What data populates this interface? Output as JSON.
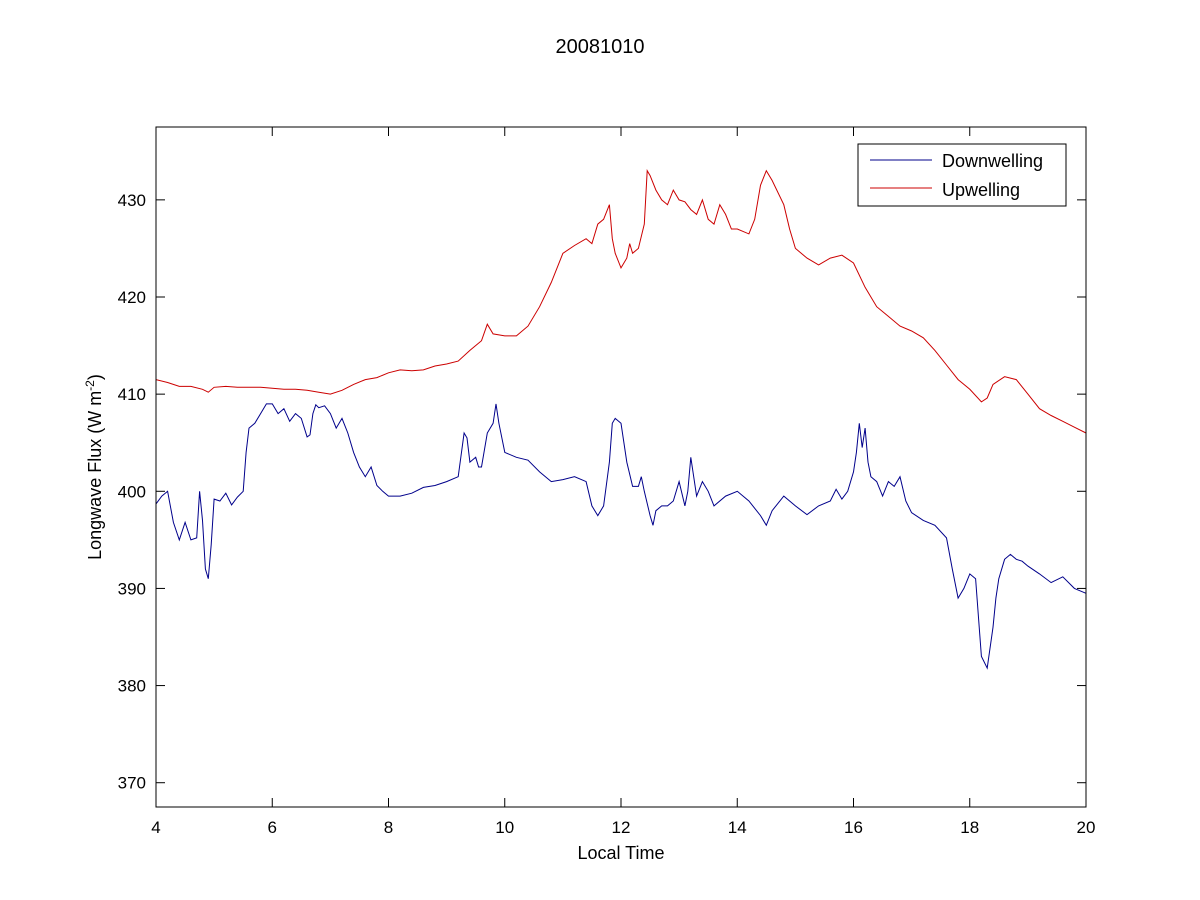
{
  "chart_data": {
    "type": "line",
    "title": "20081010",
    "xlabel": "Local Time",
    "ylabel": {
      "main": "Longwave Flux (W m",
      "superscript": "-2",
      "close": ")"
    },
    "xlim": [
      4,
      20
    ],
    "ylim": [
      367.5,
      437.5
    ],
    "xticks": [
      4,
      6,
      8,
      10,
      12,
      14,
      16,
      18,
      20
    ],
    "yticks": [
      370,
      380,
      390,
      400,
      410,
      420,
      430
    ],
    "grid": false,
    "legend": {
      "placement": "top-right"
    },
    "series": [
      {
        "name": "Downwelling",
        "color": "#00008b",
        "points": [
          [
            4.0,
            398.7
          ],
          [
            4.1,
            399.5
          ],
          [
            4.2,
            400.0
          ],
          [
            4.3,
            396.8
          ],
          [
            4.4,
            395.0
          ],
          [
            4.5,
            396.8
          ],
          [
            4.6,
            395.0
          ],
          [
            4.7,
            395.2
          ],
          [
            4.75,
            400.0
          ],
          [
            4.8,
            397.0
          ],
          [
            4.85,
            392.0
          ],
          [
            4.9,
            391.0
          ],
          [
            4.95,
            394.5
          ],
          [
            5.0,
            399.2
          ],
          [
            5.1,
            399.0
          ],
          [
            5.2,
            399.8
          ],
          [
            5.3,
            398.6
          ],
          [
            5.4,
            399.4
          ],
          [
            5.5,
            400.0
          ],
          [
            5.55,
            404.0
          ],
          [
            5.6,
            406.5
          ],
          [
            5.7,
            407.0
          ],
          [
            5.8,
            408.0
          ],
          [
            5.9,
            409.0
          ],
          [
            6.0,
            409.0
          ],
          [
            6.1,
            408.0
          ],
          [
            6.2,
            408.5
          ],
          [
            6.3,
            407.2
          ],
          [
            6.4,
            408.0
          ],
          [
            6.5,
            407.5
          ],
          [
            6.6,
            405.6
          ],
          [
            6.65,
            405.8
          ],
          [
            6.7,
            408.0
          ],
          [
            6.75,
            408.9
          ],
          [
            6.8,
            408.6
          ],
          [
            6.9,
            408.8
          ],
          [
            7.0,
            408.0
          ],
          [
            7.1,
            406.5
          ],
          [
            7.2,
            407.5
          ],
          [
            7.3,
            406.0
          ],
          [
            7.4,
            404.0
          ],
          [
            7.5,
            402.5
          ],
          [
            7.6,
            401.5
          ],
          [
            7.7,
            402.5
          ],
          [
            7.8,
            400.6
          ],
          [
            7.9,
            400.0
          ],
          [
            8.0,
            399.5
          ],
          [
            8.2,
            399.5
          ],
          [
            8.4,
            399.8
          ],
          [
            8.6,
            400.4
          ],
          [
            8.8,
            400.6
          ],
          [
            9.0,
            401.0
          ],
          [
            9.2,
            401.5
          ],
          [
            9.3,
            406.0
          ],
          [
            9.35,
            405.5
          ],
          [
            9.4,
            403.0
          ],
          [
            9.5,
            403.5
          ],
          [
            9.55,
            402.5
          ],
          [
            9.6,
            402.5
          ],
          [
            9.7,
            406.0
          ],
          [
            9.8,
            407.0
          ],
          [
            9.85,
            409.0
          ],
          [
            9.9,
            407.0
          ],
          [
            10.0,
            404.0
          ],
          [
            10.2,
            403.5
          ],
          [
            10.4,
            403.2
          ],
          [
            10.6,
            402.0
          ],
          [
            10.8,
            401.0
          ],
          [
            11.0,
            401.2
          ],
          [
            11.2,
            401.5
          ],
          [
            11.4,
            401.0
          ],
          [
            11.5,
            398.5
          ],
          [
            11.6,
            397.5
          ],
          [
            11.7,
            398.5
          ],
          [
            11.8,
            403.0
          ],
          [
            11.85,
            407.0
          ],
          [
            11.9,
            407.5
          ],
          [
            12.0,
            407.0
          ],
          [
            12.1,
            403.0
          ],
          [
            12.2,
            400.5
          ],
          [
            12.3,
            400.5
          ],
          [
            12.35,
            401.5
          ],
          [
            12.4,
            400.0
          ],
          [
            12.5,
            397.5
          ],
          [
            12.55,
            396.5
          ],
          [
            12.6,
            398.0
          ],
          [
            12.7,
            398.5
          ],
          [
            12.8,
            398.5
          ],
          [
            12.9,
            399.0
          ],
          [
            13.0,
            401.0
          ],
          [
            13.1,
            398.5
          ],
          [
            13.15,
            400.0
          ],
          [
            13.2,
            403.5
          ],
          [
            13.3,
            399.5
          ],
          [
            13.4,
            401.0
          ],
          [
            13.5,
            400.0
          ],
          [
            13.6,
            398.5
          ],
          [
            13.8,
            399.5
          ],
          [
            14.0,
            400.0
          ],
          [
            14.2,
            399.0
          ],
          [
            14.4,
            397.5
          ],
          [
            14.5,
            396.5
          ],
          [
            14.6,
            398.0
          ],
          [
            14.8,
            399.5
          ],
          [
            15.0,
            398.5
          ],
          [
            15.2,
            397.6
          ],
          [
            15.4,
            398.5
          ],
          [
            15.6,
            399.0
          ],
          [
            15.7,
            400.2
          ],
          [
            15.8,
            399.2
          ],
          [
            15.9,
            400.0
          ],
          [
            16.0,
            402.0
          ],
          [
            16.05,
            404.0
          ],
          [
            16.1,
            407.0
          ],
          [
            16.15,
            404.5
          ],
          [
            16.2,
            406.5
          ],
          [
            16.25,
            403.0
          ],
          [
            16.3,
            401.5
          ],
          [
            16.4,
            401.0
          ],
          [
            16.5,
            399.5
          ],
          [
            16.6,
            401.0
          ],
          [
            16.7,
            400.5
          ],
          [
            16.8,
            401.5
          ],
          [
            16.9,
            399.0
          ],
          [
            17.0,
            397.8
          ],
          [
            17.2,
            397.0
          ],
          [
            17.4,
            396.5
          ],
          [
            17.6,
            395.2
          ],
          [
            17.7,
            392.0
          ],
          [
            17.8,
            389.0
          ],
          [
            17.9,
            390.0
          ],
          [
            18.0,
            391.5
          ],
          [
            18.1,
            391.0
          ],
          [
            18.15,
            387.0
          ],
          [
            18.2,
            383.0
          ],
          [
            18.3,
            381.8
          ],
          [
            18.4,
            386.0
          ],
          [
            18.45,
            389.0
          ],
          [
            18.5,
            391.0
          ],
          [
            18.6,
            393.0
          ],
          [
            18.7,
            393.5
          ],
          [
            18.8,
            393.0
          ],
          [
            18.9,
            392.8
          ],
          [
            19.0,
            392.3
          ],
          [
            19.2,
            391.5
          ],
          [
            19.4,
            390.6
          ],
          [
            19.6,
            391.2
          ],
          [
            19.8,
            390.0
          ],
          [
            20.0,
            389.5
          ]
        ]
      },
      {
        "name": "Upwelling",
        "color": "#cc0000",
        "points": [
          [
            4.0,
            411.5
          ],
          [
            4.2,
            411.2
          ],
          [
            4.4,
            410.8
          ],
          [
            4.6,
            410.8
          ],
          [
            4.8,
            410.5
          ],
          [
            4.9,
            410.2
          ],
          [
            5.0,
            410.7
          ],
          [
            5.2,
            410.8
          ],
          [
            5.4,
            410.7
          ],
          [
            5.6,
            410.7
          ],
          [
            5.8,
            410.7
          ],
          [
            6.0,
            410.6
          ],
          [
            6.2,
            410.5
          ],
          [
            6.4,
            410.5
          ],
          [
            6.6,
            410.4
          ],
          [
            6.8,
            410.2
          ],
          [
            7.0,
            410.0
          ],
          [
            7.2,
            410.4
          ],
          [
            7.4,
            411.0
          ],
          [
            7.6,
            411.5
          ],
          [
            7.8,
            411.7
          ],
          [
            8.0,
            412.2
          ],
          [
            8.2,
            412.5
          ],
          [
            8.4,
            412.4
          ],
          [
            8.6,
            412.5
          ],
          [
            8.8,
            412.9
          ],
          [
            9.0,
            413.1
          ],
          [
            9.2,
            413.4
          ],
          [
            9.4,
            414.5
          ],
          [
            9.6,
            415.5
          ],
          [
            9.7,
            417.2
          ],
          [
            9.8,
            416.2
          ],
          [
            10.0,
            416.0
          ],
          [
            10.2,
            416.0
          ],
          [
            10.4,
            417.0
          ],
          [
            10.6,
            419.0
          ],
          [
            10.8,
            421.5
          ],
          [
            11.0,
            424.5
          ],
          [
            11.2,
            425.3
          ],
          [
            11.4,
            426.0
          ],
          [
            11.5,
            425.5
          ],
          [
            11.6,
            427.5
          ],
          [
            11.7,
            428.0
          ],
          [
            11.8,
            429.5
          ],
          [
            11.85,
            426.0
          ],
          [
            11.9,
            424.5
          ],
          [
            12.0,
            423.0
          ],
          [
            12.1,
            424.0
          ],
          [
            12.15,
            425.5
          ],
          [
            12.2,
            424.5
          ],
          [
            12.3,
            425.0
          ],
          [
            12.4,
            427.5
          ],
          [
            12.45,
            433.0
          ],
          [
            12.5,
            432.5
          ],
          [
            12.6,
            431.0
          ],
          [
            12.7,
            430.0
          ],
          [
            12.8,
            429.5
          ],
          [
            12.9,
            431.0
          ],
          [
            13.0,
            430.0
          ],
          [
            13.1,
            429.8
          ],
          [
            13.2,
            429.0
          ],
          [
            13.3,
            428.5
          ],
          [
            13.4,
            430.0
          ],
          [
            13.5,
            428.0
          ],
          [
            13.6,
            427.5
          ],
          [
            13.7,
            429.5
          ],
          [
            13.8,
            428.5
          ],
          [
            13.9,
            427.0
          ],
          [
            14.0,
            427.0
          ],
          [
            14.2,
            426.5
          ],
          [
            14.3,
            428.0
          ],
          [
            14.4,
            431.5
          ],
          [
            14.5,
            433.0
          ],
          [
            14.6,
            432.0
          ],
          [
            14.8,
            429.5
          ],
          [
            14.9,
            427.0
          ],
          [
            15.0,
            425.0
          ],
          [
            15.2,
            424.0
          ],
          [
            15.4,
            423.3
          ],
          [
            15.6,
            424.0
          ],
          [
            15.8,
            424.3
          ],
          [
            16.0,
            423.5
          ],
          [
            16.2,
            421.0
          ],
          [
            16.4,
            419.0
          ],
          [
            16.6,
            418.0
          ],
          [
            16.8,
            417.0
          ],
          [
            17.0,
            416.5
          ],
          [
            17.2,
            415.8
          ],
          [
            17.4,
            414.5
          ],
          [
            17.6,
            413.0
          ],
          [
            17.8,
            411.5
          ],
          [
            18.0,
            410.5
          ],
          [
            18.2,
            409.2
          ],
          [
            18.3,
            409.6
          ],
          [
            18.4,
            411.0
          ],
          [
            18.6,
            411.8
          ],
          [
            18.8,
            411.5
          ],
          [
            19.0,
            410.0
          ],
          [
            19.2,
            408.5
          ],
          [
            19.4,
            407.8
          ],
          [
            19.6,
            407.2
          ],
          [
            19.8,
            406.6
          ],
          [
            20.0,
            406.0
          ]
        ]
      }
    ]
  }
}
